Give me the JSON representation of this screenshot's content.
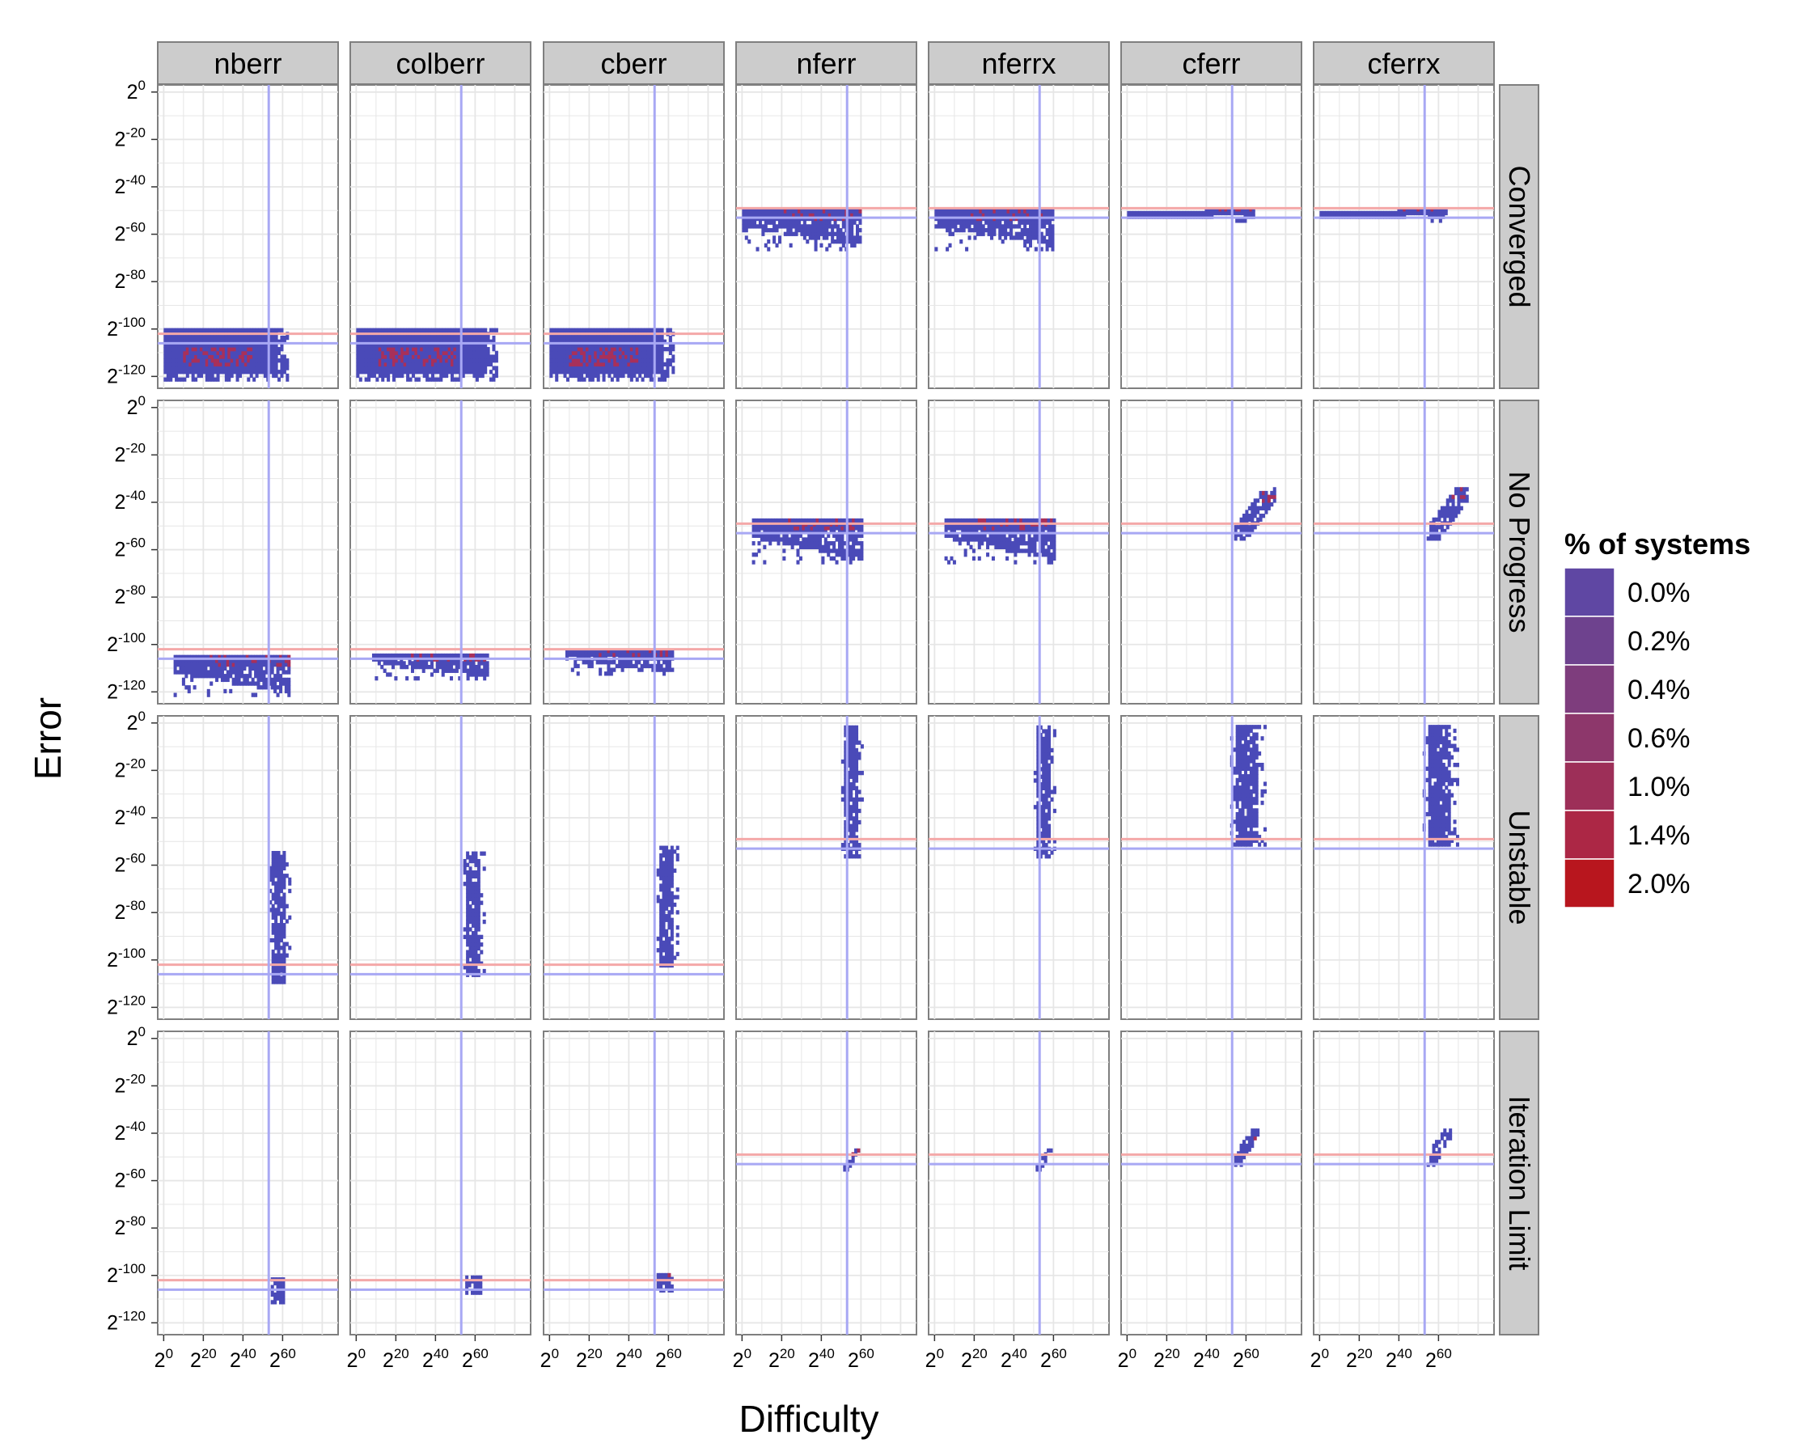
{
  "chart_data": {
    "type": "heatmap",
    "xlabel": "Difficulty",
    "ylabel": "Error",
    "x_scale": "log2",
    "y_scale": "log2",
    "xlim_exponent": [
      -3,
      88
    ],
    "ylim_exponent": [
      -125,
      3
    ],
    "x_ticks": [
      {
        "base": "2",
        "exp": "0",
        "value": 0
      },
      {
        "base": "2",
        "exp": "20",
        "value": 20
      },
      {
        "base": "2",
        "exp": "40",
        "value": 40
      },
      {
        "base": "2",
        "exp": "60",
        "value": 60
      }
    ],
    "y_ticks": [
      {
        "base": "2",
        "exp": "0",
        "value": 0
      },
      {
        "base": "2",
        "exp": "-20",
        "value": -20
      },
      {
        "base": "2",
        "exp": "-40",
        "value": -40
      },
      {
        "base": "2",
        "exp": "-60",
        "value": -60
      },
      {
        "base": "2",
        "exp": "-80",
        "value": -80
      },
      {
        "base": "2",
        "exp": "-100",
        "value": -100
      },
      {
        "base": "2",
        "exp": "-120",
        "value": -120
      }
    ],
    "columns": [
      "nberr",
      "colberr",
      "cberr",
      "nferr",
      "nferrx",
      "cferr",
      "cferrx"
    ],
    "rows": [
      "Converged",
      "No Progress",
      "Unstable",
      "Iteration Limit"
    ],
    "grid": true,
    "legend": {
      "title": "% of systems",
      "position": "right",
      "entries": [
        {
          "label": "0.0%",
          "color": "#5f47a3"
        },
        {
          "label": "0.2%",
          "color": "#6e428e"
        },
        {
          "label": "0.4%",
          "color": "#7e3d7d"
        },
        {
          "label": "0.6%",
          "color": "#8d376b"
        },
        {
          "label": "1.0%",
          "color": "#9d2f58"
        },
        {
          "label": "1.4%",
          "color": "#ac2745"
        },
        {
          "label": "2.0%",
          "color": "#b8161e"
        }
      ]
    },
    "reference_lines": {
      "vertical_blue_x": 53,
      "normwise_red_y": -102,
      "normwise_blue_y": -106,
      "componentwise_red_y": -49,
      "componentwise_blue_y": -53,
      "red_color": "#f4a8a8",
      "blue_color": "#a8a8f4"
    },
    "density_color": "#4a4ab8",
    "hot_color": "#a8305a",
    "panels": [
      {
        "row": "Converged",
        "col": "nberr",
        "regions": [
          {
            "x": [
              0,
              62
            ],
            "y": [
              -122,
              -101
            ],
            "spread": "tight"
          }
        ]
      },
      {
        "row": "Converged",
        "col": "colberr",
        "regions": [
          {
            "x": [
              0,
              70
            ],
            "y": [
              -122,
              -101
            ],
            "spread": "tight"
          }
        ]
      },
      {
        "row": "Converged",
        "col": "cberr",
        "regions": [
          {
            "x": [
              0,
              62
            ],
            "y": [
              -122,
              -101
            ],
            "spread": "tight"
          }
        ]
      },
      {
        "row": "Converged",
        "col": "nferr",
        "regions": [
          {
            "x": [
              0,
              60
            ],
            "y": [
              -67,
              -50
            ],
            "spread": "tail"
          }
        ]
      },
      {
        "row": "Converged",
        "col": "nferrx",
        "regions": [
          {
            "x": [
              0,
              60
            ],
            "y": [
              -67,
              -50
            ],
            "spread": "tail"
          }
        ]
      },
      {
        "row": "Converged",
        "col": "cferr",
        "regions": [
          {
            "x": [
              0,
              64
            ],
            "y": [
              -55,
              -50
            ],
            "spread": "thin"
          }
        ]
      },
      {
        "row": "Converged",
        "col": "cferrx",
        "regions": [
          {
            "x": [
              0,
              64
            ],
            "y": [
              -55,
              -50
            ],
            "spread": "thin"
          }
        ]
      },
      {
        "row": "No Progress",
        "col": "nberr",
        "regions": [
          {
            "x": [
              5,
              63
            ],
            "y": [
              -122,
              -105
            ],
            "spread": "tail"
          }
        ]
      },
      {
        "row": "No Progress",
        "col": "colberr",
        "regions": [
          {
            "x": [
              8,
              66
            ],
            "y": [
              -115,
              -104
            ],
            "spread": "tail"
          }
        ]
      },
      {
        "row": "No Progress",
        "col": "cberr",
        "regions": [
          {
            "x": [
              8,
              62
            ],
            "y": [
              -113,
              -103
            ],
            "spread": "tail"
          }
        ]
      },
      {
        "row": "No Progress",
        "col": "nferr",
        "regions": [
          {
            "x": [
              5,
              60
            ],
            "y": [
              -66,
              -47
            ],
            "spread": "tail"
          }
        ]
      },
      {
        "row": "No Progress",
        "col": "nferrx",
        "regions": [
          {
            "x": [
              5,
              60
            ],
            "y": [
              -66,
              -47
            ],
            "spread": "tail"
          }
        ]
      },
      {
        "row": "No Progress",
        "col": "cferr",
        "regions": [
          {
            "x": [
              54,
              74
            ],
            "y": [
              -56,
              -34
            ],
            "spread": "diagonal"
          }
        ]
      },
      {
        "row": "No Progress",
        "col": "cferrx",
        "regions": [
          {
            "x": [
              54,
              74
            ],
            "y": [
              -56,
              -34
            ],
            "spread": "diagonal"
          }
        ]
      },
      {
        "row": "Unstable",
        "col": "nberr",
        "regions": [
          {
            "x": [
              53,
              64
            ],
            "y": [
              -110,
              -55
            ],
            "spread": "column"
          }
        ]
      },
      {
        "row": "Unstable",
        "col": "colberr",
        "regions": [
          {
            "x": [
              54,
              64
            ],
            "y": [
              -107,
              -55
            ],
            "spread": "column"
          }
        ]
      },
      {
        "row": "Unstable",
        "col": "cberr",
        "regions": [
          {
            "x": [
              54,
              64
            ],
            "y": [
              -103,
              -52
            ],
            "spread": "column"
          }
        ]
      },
      {
        "row": "Unstable",
        "col": "nferr",
        "regions": [
          {
            "x": [
              50,
              61
            ],
            "y": [
              -57,
              -1
            ],
            "spread": "column"
          }
        ]
      },
      {
        "row": "Unstable",
        "col": "nferrx",
        "regions": [
          {
            "x": [
              50,
              61
            ],
            "y": [
              -57,
              -1
            ],
            "spread": "column"
          }
        ]
      },
      {
        "row": "Unstable",
        "col": "cferr",
        "regions": [
          {
            "x": [
              52,
              70
            ],
            "y": [
              -52,
              -1
            ],
            "spread": "column"
          }
        ]
      },
      {
        "row": "Unstable",
        "col": "cferrx",
        "regions": [
          {
            "x": [
              52,
              70
            ],
            "y": [
              -52,
              -1
            ],
            "spread": "column"
          }
        ]
      },
      {
        "row": "Iteration Limit",
        "col": "nberr",
        "regions": [
          {
            "x": [
              54,
              60
            ],
            "y": [
              -112,
              -102
            ],
            "spread": "blob"
          }
        ]
      },
      {
        "row": "Iteration Limit",
        "col": "colberr",
        "regions": [
          {
            "x": [
              55,
              63
            ],
            "y": [
              -108,
              -101
            ],
            "spread": "blob"
          }
        ]
      },
      {
        "row": "Iteration Limit",
        "col": "cberr",
        "regions": [
          {
            "x": [
              54,
              62
            ],
            "y": [
              -107,
              -100
            ],
            "spread": "blob"
          }
        ]
      },
      {
        "row": "Iteration Limit",
        "col": "nferr",
        "regions": [
          {
            "x": [
              51,
              58
            ],
            "y": [
              -56,
              -47
            ],
            "spread": "diagonal"
          }
        ]
      },
      {
        "row": "Iteration Limit",
        "col": "nferrx",
        "regions": [
          {
            "x": [
              51,
              58
            ],
            "y": [
              -56,
              -47
            ],
            "spread": "diagonal"
          }
        ]
      },
      {
        "row": "Iteration Limit",
        "col": "cferr",
        "regions": [
          {
            "x": [
              54,
              66
            ],
            "y": [
              -54,
              -38
            ],
            "spread": "diagonal"
          }
        ]
      },
      {
        "row": "Iteration Limit",
        "col": "cferrx",
        "regions": [
          {
            "x": [
              54,
              66
            ],
            "y": [
              -54,
              -38
            ],
            "spread": "diagonal"
          }
        ]
      }
    ]
  }
}
